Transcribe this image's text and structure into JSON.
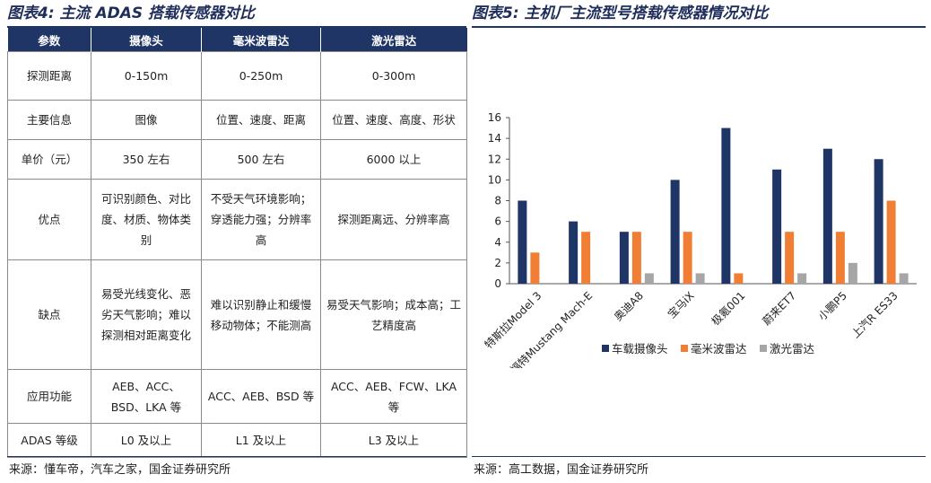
{
  "left": {
    "title": "图表4: 主流 ADAS 搭载传感器对比",
    "table": {
      "headers": [
        "参数",
        "摄像头",
        "毫米波雷达",
        "激光雷达"
      ],
      "rows": [
        {
          "label": "探测距离",
          "cells": [
            "0-150m",
            "0-250m",
            "0-300m"
          ]
        },
        {
          "label": "主要信息",
          "cells": [
            "图像",
            "位置、速度、距离",
            "位置、速度、高度、形状"
          ]
        },
        {
          "label": "单价（元）",
          "cells": [
            "350 左右",
            "500 左右",
            "6000 以上"
          ]
        },
        {
          "label": "优点",
          "cells": [
            "可识别颜色、对比度、材质、物体类别",
            "不受天气环境影响；穿透能力强；分辨率高",
            "探测距离远、分辨率高"
          ]
        },
        {
          "label": "缺点",
          "cells": [
            "易受光线变化、恶劣天气影响；难以探测相对距离变化",
            "难以识别静止和缓慢移动物体；不能测高",
            "易受天气影响；成本高；工艺精度高"
          ]
        },
        {
          "label": "应用功能",
          "cells": [
            "AEB、ACC、BSD、LKA 等",
            "ACC、AEB、BSD 等",
            "ACC、AEB、FCW、LKA 等"
          ]
        },
        {
          "label": "ADAS 等级",
          "cells": [
            "L0 及以上",
            "L1 及以上",
            "L3 及以上"
          ]
        }
      ]
    },
    "source": "来源：懂车帝，汽车之家，国金证券研究所"
  },
  "right": {
    "title": "图表5: 主机厂主流型号搭载传感器情况对比",
    "source": "来源：高工数据，国金证券研究所"
  },
  "colors": {
    "navy": "#1f3566",
    "orange": "#f07f35",
    "gray": "#a6a6a6"
  },
  "chart_data": {
    "type": "bar",
    "title": "主机厂主流型号搭载传感器情况对比",
    "categories": [
      "特斯拉Model 3",
      "福特Mustang Mach-E",
      "奥迪A8",
      "宝马iX",
      "极氪001",
      "蔚来ET7",
      "小鹏P5",
      "上汽R ES33"
    ],
    "series": [
      {
        "name": "车载摄像头",
        "color": "#1f3566",
        "values": [
          8,
          6,
          5,
          10,
          15,
          11,
          13,
          12
        ]
      },
      {
        "name": "毫米波雷达",
        "color": "#f07f35",
        "values": [
          3,
          5,
          5,
          5,
          1,
          5,
          5,
          8
        ]
      },
      {
        "name": "激光雷达",
        "color": "#a6a6a6",
        "values": [
          0,
          0,
          1,
          1,
          0,
          1,
          2,
          1
        ]
      }
    ],
    "ylim": [
      0,
      16
    ],
    "yticks": [
      0,
      2,
      4,
      6,
      8,
      10,
      12,
      14,
      16
    ],
    "xlabel": "",
    "ylabel": "",
    "legend": "bottom",
    "grid": false
  }
}
